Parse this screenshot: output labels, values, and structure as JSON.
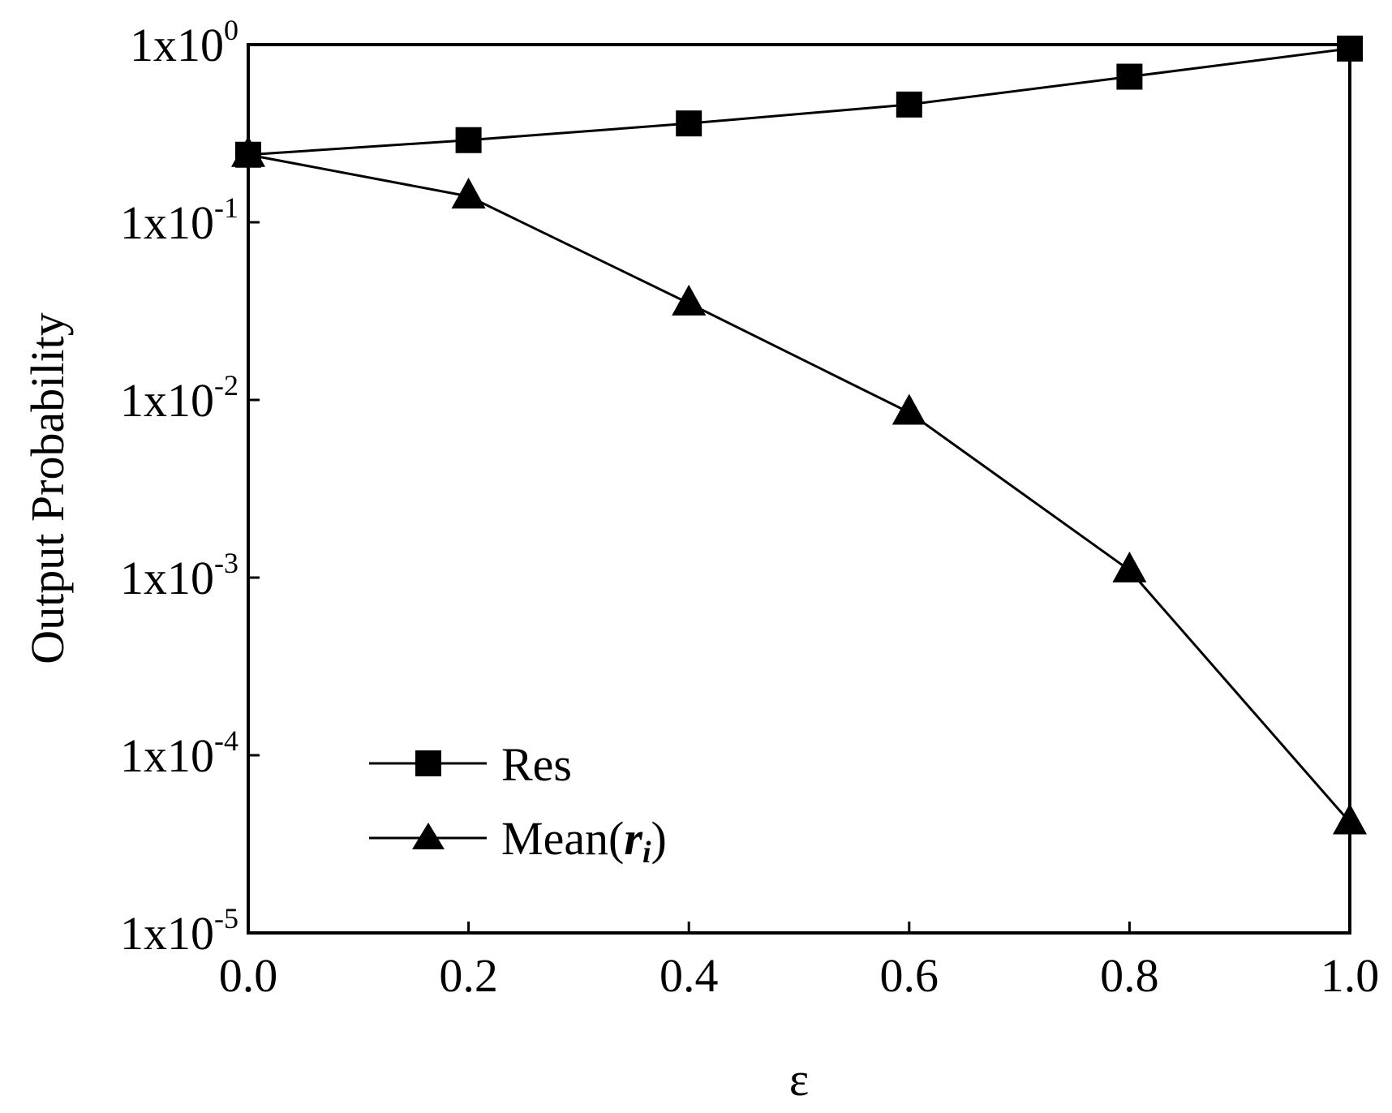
{
  "chart_data": {
    "type": "line",
    "title": "",
    "xlabel": "ε",
    "ylabel": "Output Probability",
    "yscale": "log",
    "xlim": [
      0.0,
      1.0
    ],
    "ylim": [
      1e-05,
      1
    ],
    "x": [
      0.0,
      0.2,
      0.4,
      0.6,
      0.8,
      1.0
    ],
    "x_tick_labels": [
      "0.0",
      "0.2",
      "0.4",
      "0.6",
      "0.8",
      "1.0"
    ],
    "y_ticks": [
      {
        "value": 1,
        "base": "1x10",
        "exp": "0"
      },
      {
        "value": 0.1,
        "base": "1x10",
        "exp": "-1"
      },
      {
        "value": 0.01,
        "base": "1x10",
        "exp": "-2"
      },
      {
        "value": 0.001,
        "base": "1x10",
        "exp": "-3"
      },
      {
        "value": 0.0001,
        "base": "1x10",
        "exp": "-4"
      },
      {
        "value": 1e-05,
        "base": "1x10",
        "exp": "-5"
      }
    ],
    "series": [
      {
        "name": "Res",
        "marker": "square",
        "values": [
          0.24,
          0.29,
          0.36,
          0.46,
          0.66,
          0.95
        ]
      },
      {
        "name": "Mean(ri)",
        "marker": "triangle",
        "values": [
          0.24,
          0.14,
          0.035,
          0.0085,
          0.0011,
          4.2e-05
        ]
      }
    ],
    "legend": {
      "position": "bottom-left",
      "items": [
        {
          "label": "Res",
          "marker": "square"
        },
        {
          "label_main": "Mean(",
          "label_var": "r",
          "label_sub": "i",
          "label_close": ")",
          "marker": "triangle"
        }
      ]
    },
    "grid": false
  }
}
